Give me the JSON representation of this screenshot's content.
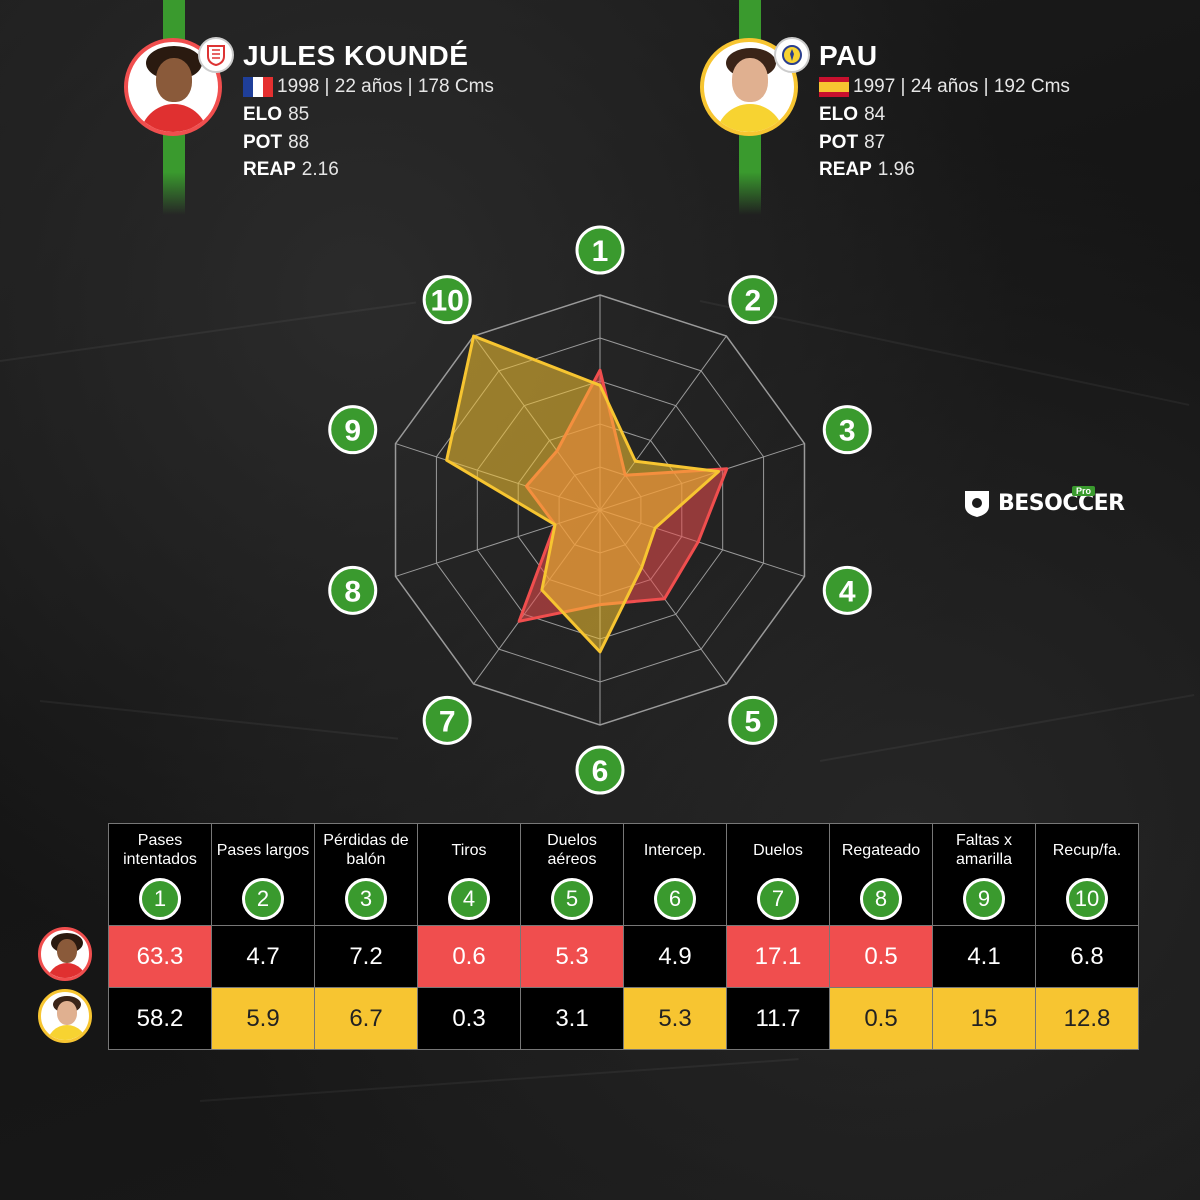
{
  "players": [
    {
      "name": "JULES KOUNDÉ",
      "flag": "france",
      "info": "1998 | 22 años | 178 Cms",
      "elo_label": "ELO",
      "elo": "85",
      "pot_label": "POT",
      "pot": "88",
      "reap_label": "REAP",
      "reap": "2.16",
      "club": "Sevilla",
      "color": "#f04e4e"
    },
    {
      "name": "PAU",
      "flag": "spain",
      "info": "1997 | 24 años | 192 Cms",
      "elo_label": "ELO",
      "elo": "84",
      "pot_label": "POT",
      "pot": "87",
      "reap_label": "REAP",
      "reap": "1.96",
      "club": "Villarreal",
      "color": "#f7c531"
    }
  ],
  "brand": {
    "name": "BESOCCER",
    "badge": "Pro"
  },
  "chart_data": {
    "type": "radar",
    "axes": [
      "1",
      "2",
      "3",
      "4",
      "5",
      "6",
      "7",
      "8",
      "9",
      "10"
    ],
    "series": [
      {
        "values": [
          0.65,
          0.2,
          0.62,
          0.48,
          0.51,
          0.44,
          0.64,
          0.22,
          0.36,
          0.34
        ],
        "color": "#f04e4e"
      },
      {
        "values": [
          0.58,
          0.28,
          0.58,
          0.27,
          0.33,
          0.66,
          0.46,
          0.22,
          0.75,
          1.0
        ],
        "color": "#f7c531"
      }
    ],
    "rings": 5
  },
  "table": {
    "headers": [
      {
        "label": "Pases intentados",
        "num": "1"
      },
      {
        "label": "Pases largos",
        "num": "2"
      },
      {
        "label": "Pérdidas de balón",
        "num": "3"
      },
      {
        "label": "Tiros",
        "num": "4"
      },
      {
        "label": "Duelos aéreos",
        "num": "5"
      },
      {
        "label": "Intercep.",
        "num": "6"
      },
      {
        "label": "Duelos",
        "num": "7"
      },
      {
        "label": "Regateado",
        "num": "8"
      },
      {
        "label": "Faltas x amarilla",
        "num": "9"
      },
      {
        "label": "Recup/fa.",
        "num": "10"
      }
    ],
    "rows": [
      {
        "values": [
          "63.3",
          "4.7",
          "7.2",
          "0.6",
          "5.3",
          "4.9",
          "17.1",
          "0.5",
          "4.1",
          "6.8"
        ],
        "highlight": [
          true,
          false,
          false,
          true,
          true,
          false,
          true,
          true,
          false,
          false
        ]
      },
      {
        "values": [
          "58.2",
          "5.9",
          "6.7",
          "0.3",
          "3.1",
          "5.3",
          "11.7",
          "0.5",
          "15",
          "12.8"
        ],
        "highlight": [
          false,
          true,
          true,
          false,
          false,
          true,
          false,
          true,
          true,
          true
        ]
      }
    ]
  }
}
